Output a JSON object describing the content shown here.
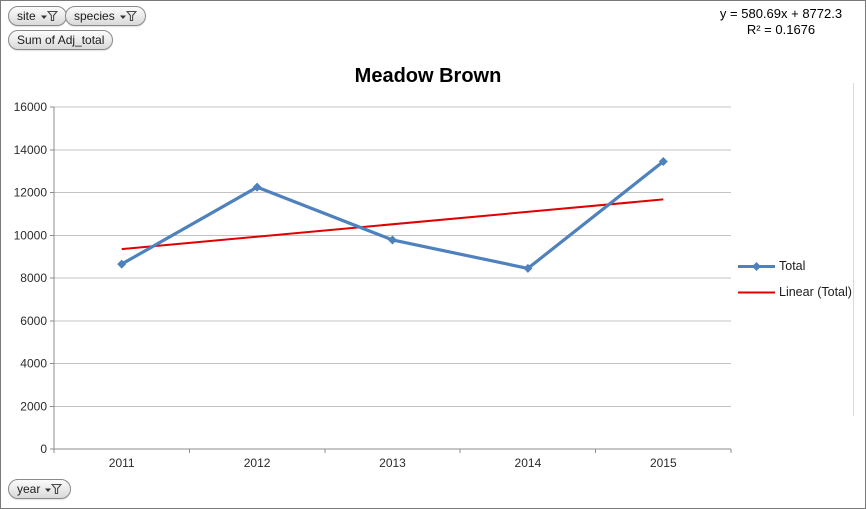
{
  "window": {
    "background": "#FFFFFF",
    "border_color": "#7A7A7A"
  },
  "pivot_fields": {
    "site": {
      "label": "site"
    },
    "species": {
      "label": "species"
    },
    "values": {
      "label": "Sum of Adj_total"
    },
    "axis": {
      "label": "year"
    }
  },
  "equation": {
    "line1": "y = 580.69x + 8772.3",
    "line2": "R² = 0.1676"
  },
  "chart_data": {
    "type": "line",
    "title": "Meadow Brown",
    "categories": [
      "2011",
      "2012",
      "2013",
      "2014",
      "2015"
    ],
    "series": [
      {
        "name": "Total",
        "values": [
          8650,
          12250,
          9780,
          8450,
          13450
        ],
        "color": "#4F81BD",
        "marker": "diamond"
      }
    ],
    "trendline": {
      "name": "Linear (Total)",
      "slope": 580.69,
      "intercept": 8772.3,
      "r_squared": 0.1676,
      "color": "#E00000"
    },
    "xlabel": "",
    "ylabel": "",
    "ylim": [
      0,
      16000
    ],
    "ytick_step": 2000,
    "grid": true,
    "legend_position": "right"
  }
}
